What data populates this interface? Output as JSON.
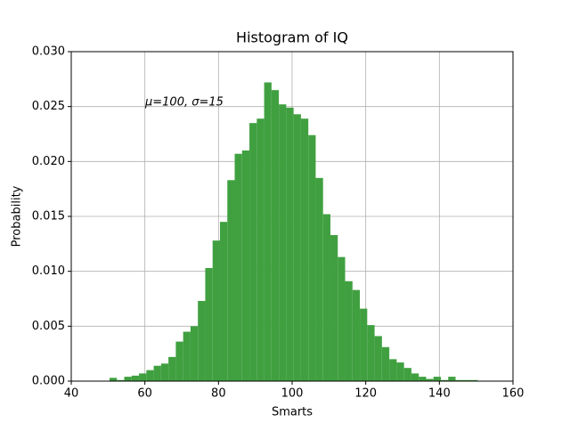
{
  "chart_data": {
    "type": "histogram",
    "title": "Histogram of IQ",
    "x_label": "Smarts",
    "y_label": "Probability",
    "annotation": "μ=100,  σ=15",
    "bins": [
      50.4,
      52.4,
      54.4,
      56.4,
      58.4,
      60.4,
      62.4,
      64.4,
      66.4,
      68.4,
      70.4,
      72.4,
      74.4,
      76.4,
      78.4,
      80.4,
      82.4,
      84.4,
      86.4,
      88.4,
      90.4,
      92.4,
      94.4,
      96.4,
      98.4,
      100.4,
      102.4,
      104.4,
      106.4,
      108.4,
      110.4,
      112.4,
      114.4,
      116.4,
      118.4,
      120.4,
      122.4,
      124.4,
      126.4,
      128.4,
      130.4,
      132.4,
      134.4,
      136.4,
      138.4,
      140.4,
      142.4,
      144.4,
      146.4,
      148.4,
      150.4
    ],
    "values": [
      0.0003,
      0.0001,
      0.0004,
      0.0005,
      0.0007,
      0.001,
      0.0014,
      0.0016,
      0.0022,
      0.0036,
      0.0045,
      0.005,
      0.0073,
      0.0103,
      0.0128,
      0.0145,
      0.0183,
      0.0207,
      0.021,
      0.0235,
      0.0239,
      0.0272,
      0.0265,
      0.0252,
      0.0249,
      0.0243,
      0.0239,
      0.0224,
      0.0185,
      0.0152,
      0.0133,
      0.0113,
      0.0091,
      0.0083,
      0.0066,
      0.0051,
      0.0041,
      0.0031,
      0.002,
      0.0017,
      0.0012,
      0.0007,
      0.0004,
      0.0002,
      0.0004,
      0.0001,
      0.0004,
      0.0001,
      0.0001,
      0.0001
    ],
    "color": "#40a040",
    "xlim": [
      40,
      160
    ],
    "xticks": [
      40,
      60,
      80,
      100,
      120,
      140,
      160
    ],
    "ylim": [
      0,
      0.03
    ],
    "yticks": [
      {
        "value": 0,
        "label": "0.000"
      },
      {
        "value": 0.005,
        "label": "0.005"
      },
      {
        "value": 0.01,
        "label": "0.010"
      },
      {
        "value": 0.015,
        "label": "0.015"
      },
      {
        "value": 0.02,
        "label": "0.020"
      },
      {
        "value": 0.025,
        "label": "0.025"
      },
      {
        "value": 0.03,
        "label": "0.030"
      }
    ],
    "grid": true
  }
}
